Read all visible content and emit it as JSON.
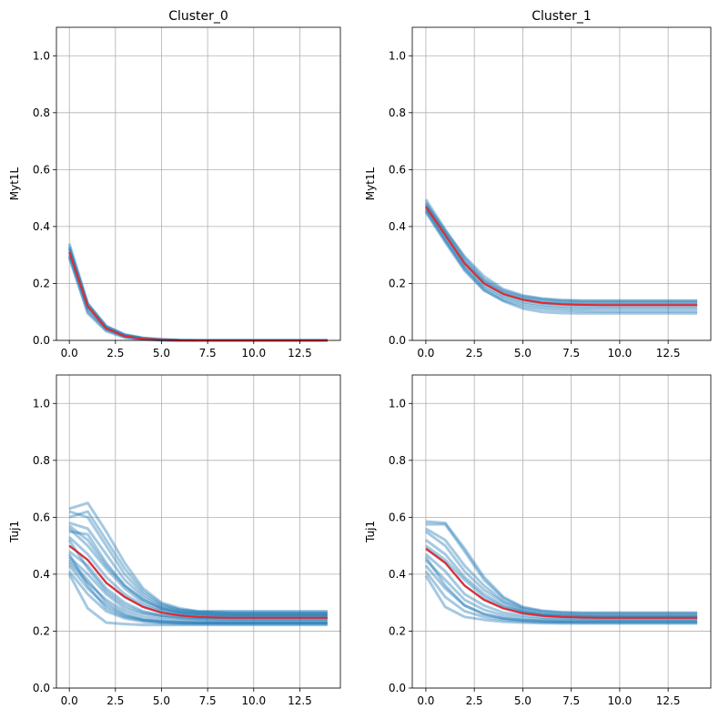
{
  "chart_data": [
    {
      "type": "line",
      "title": "Cluster_0",
      "xlabel": "",
      "ylabel": "Myt1L",
      "xlim": [
        -0.7,
        14.7
      ],
      "ylim": [
        0,
        1.1
      ],
      "xticks": [
        0,
        2.5,
        5,
        7.5,
        10,
        12.5
      ],
      "xtick_labels": [
        "0.0",
        "2.5",
        "5.0",
        "7.5",
        "10.0",
        "12.5"
      ],
      "yticks": [
        0,
        0.2,
        0.4,
        0.6,
        0.8,
        1.0
      ],
      "ytick_labels": [
        "0.0",
        "0.2",
        "0.4",
        "0.6",
        "0.8",
        "1.0"
      ],
      "grid": true,
      "x": [
        0,
        1,
        2,
        3,
        4,
        5,
        6,
        7,
        8,
        9,
        10,
        11,
        12,
        13,
        14
      ],
      "mean_series": [
        0.31,
        0.12,
        0.042,
        0.015,
        0.005,
        0.002,
        0.0,
        0.0,
        0.0,
        0.0,
        0.0,
        0.0,
        0.0,
        0.0,
        0.0
      ],
      "mean_color": "#e8262a",
      "trace_color": "#1f77b4",
      "traces": [
        [
          0.34,
          0.13,
          0.05,
          0.02,
          0.008,
          0.003,
          0.001,
          0,
          0,
          0,
          0,
          0,
          0,
          0,
          0
        ],
        [
          0.33,
          0.125,
          0.047,
          0.018,
          0.007,
          0.002,
          0,
          0,
          0,
          0,
          0,
          0,
          0,
          0,
          0
        ],
        [
          0.32,
          0.12,
          0.044,
          0.016,
          0.006,
          0.002,
          0,
          0,
          0,
          0,
          0,
          0,
          0,
          0,
          0
        ],
        [
          0.31,
          0.115,
          0.042,
          0.015,
          0.005,
          0.002,
          0,
          0,
          0,
          0,
          0,
          0,
          0,
          0,
          0
        ],
        [
          0.3,
          0.11,
          0.04,
          0.014,
          0.005,
          0.001,
          0,
          0,
          0,
          0,
          0,
          0,
          0,
          0,
          0
        ],
        [
          0.295,
          0.1,
          0.036,
          0.012,
          0.004,
          0.001,
          0,
          0,
          0,
          0,
          0,
          0,
          0,
          0,
          0
        ],
        [
          0.29,
          0.095,
          0.032,
          0.01,
          0.003,
          0.001,
          0,
          0,
          0,
          0,
          0,
          0,
          0,
          0,
          0
        ],
        [
          0.325,
          0.128,
          0.05,
          0.021,
          0.009,
          0.004,
          0.001,
          0,
          0,
          0,
          0,
          0,
          0,
          0,
          0
        ]
      ]
    },
    {
      "type": "line",
      "title": "Cluster_1",
      "xlabel": "",
      "ylabel": "Myt1L",
      "xlim": [
        -0.7,
        14.7
      ],
      "ylim": [
        0,
        1.1
      ],
      "xticks": [
        0,
        2.5,
        5,
        7.5,
        10,
        12.5
      ],
      "xtick_labels": [
        "0.0",
        "2.5",
        "5.0",
        "7.5",
        "10.0",
        "12.5"
      ],
      "yticks": [
        0,
        0.2,
        0.4,
        0.6,
        0.8,
        1.0
      ],
      "ytick_labels": [
        "0.0",
        "0.2",
        "0.4",
        "0.6",
        "0.8",
        "1.0"
      ],
      "grid": true,
      "x": [
        0,
        1,
        2,
        3,
        4,
        5,
        6,
        7,
        8,
        9,
        10,
        11,
        12,
        13,
        14
      ],
      "mean_series": [
        0.47,
        0.37,
        0.27,
        0.2,
        0.163,
        0.143,
        0.132,
        0.127,
        0.125,
        0.124,
        0.124,
        0.124,
        0.124,
        0.124,
        0.124
      ],
      "mean_color": "#e8262a",
      "trace_color": "#1f77b4",
      "traces": [
        [
          0.495,
          0.39,
          0.29,
          0.215,
          0.175,
          0.155,
          0.145,
          0.14,
          0.138,
          0.138,
          0.138,
          0.138,
          0.138,
          0.138,
          0.138
        ],
        [
          0.485,
          0.38,
          0.28,
          0.21,
          0.17,
          0.15,
          0.14,
          0.135,
          0.133,
          0.133,
          0.133,
          0.133,
          0.133,
          0.133,
          0.133
        ],
        [
          0.475,
          0.375,
          0.275,
          0.205,
          0.165,
          0.145,
          0.134,
          0.13,
          0.128,
          0.128,
          0.128,
          0.128,
          0.128,
          0.128,
          0.128
        ],
        [
          0.47,
          0.37,
          0.27,
          0.2,
          0.162,
          0.142,
          0.131,
          0.127,
          0.125,
          0.125,
          0.125,
          0.125,
          0.125,
          0.125,
          0.125
        ],
        [
          0.465,
          0.362,
          0.262,
          0.192,
          0.155,
          0.135,
          0.125,
          0.12,
          0.118,
          0.118,
          0.118,
          0.118,
          0.118,
          0.118,
          0.118
        ],
        [
          0.46,
          0.355,
          0.255,
          0.185,
          0.148,
          0.128,
          0.118,
          0.113,
          0.111,
          0.111,
          0.111,
          0.111,
          0.111,
          0.111,
          0.111
        ],
        [
          0.45,
          0.345,
          0.245,
          0.175,
          0.14,
          0.12,
          0.11,
          0.105,
          0.103,
          0.102,
          0.102,
          0.102,
          0.102,
          0.102,
          0.102
        ],
        [
          0.455,
          0.35,
          0.25,
          0.178,
          0.138,
          0.112,
          0.1,
          0.096,
          0.095,
          0.095,
          0.095,
          0.095,
          0.095,
          0.095,
          0.095
        ],
        [
          0.48,
          0.385,
          0.295,
          0.225,
          0.18,
          0.158,
          0.147,
          0.142,
          0.14,
          0.14,
          0.14,
          0.14,
          0.14,
          0.14,
          0.14
        ]
      ]
    },
    {
      "type": "line",
      "title": "",
      "xlabel": "",
      "ylabel": "Tuj1",
      "xlim": [
        -0.7,
        14.7
      ],
      "ylim": [
        0,
        1.1
      ],
      "xticks": [
        0,
        2.5,
        5,
        7.5,
        10,
        12.5
      ],
      "xtick_labels": [
        "0.0",
        "2.5",
        "5.0",
        "7.5",
        "10.0",
        "12.5"
      ],
      "yticks": [
        0,
        0.2,
        0.4,
        0.6,
        0.8,
        1.0
      ],
      "ytick_labels": [
        "0.0",
        "0.2",
        "0.4",
        "0.6",
        "0.8",
        "1.0"
      ],
      "grid": true,
      "x": [
        0,
        1,
        2,
        3,
        4,
        5,
        6,
        7,
        8,
        9,
        10,
        11,
        12,
        13,
        14
      ],
      "mean_series": [
        0.5,
        0.45,
        0.37,
        0.32,
        0.285,
        0.265,
        0.255,
        0.25,
        0.248,
        0.247,
        0.247,
        0.247,
        0.247,
        0.247,
        0.247
      ],
      "mean_color": "#e8262a",
      "trace_color": "#1f77b4",
      "traces": [
        [
          0.63,
          0.65,
          0.55,
          0.44,
          0.35,
          0.3,
          0.28,
          0.27,
          0.27,
          0.27,
          0.27,
          0.27,
          0.27,
          0.27,
          0.27
        ],
        [
          0.62,
          0.6,
          0.5,
          0.4,
          0.33,
          0.29,
          0.275,
          0.268,
          0.266,
          0.265,
          0.265,
          0.265,
          0.265,
          0.265,
          0.265
        ],
        [
          0.6,
          0.62,
          0.52,
          0.42,
          0.34,
          0.295,
          0.275,
          0.268,
          0.266,
          0.265,
          0.265,
          0.265,
          0.265,
          0.265,
          0.265
        ],
        [
          0.58,
          0.56,
          0.47,
          0.38,
          0.32,
          0.285,
          0.27,
          0.265,
          0.263,
          0.262,
          0.262,
          0.262,
          0.262,
          0.262,
          0.262
        ],
        [
          0.56,
          0.5,
          0.42,
          0.35,
          0.3,
          0.275,
          0.263,
          0.258,
          0.256,
          0.255,
          0.255,
          0.255,
          0.255,
          0.255,
          0.255
        ],
        [
          0.55,
          0.54,
          0.44,
          0.36,
          0.31,
          0.28,
          0.266,
          0.26,
          0.258,
          0.258,
          0.258,
          0.258,
          0.258,
          0.258,
          0.258
        ],
        [
          0.53,
          0.47,
          0.39,
          0.33,
          0.29,
          0.27,
          0.26,
          0.255,
          0.253,
          0.252,
          0.252,
          0.252,
          0.252,
          0.252,
          0.252
        ],
        [
          0.5,
          0.45,
          0.37,
          0.32,
          0.285,
          0.265,
          0.255,
          0.25,
          0.248,
          0.247,
          0.247,
          0.247,
          0.247,
          0.247,
          0.247
        ],
        [
          0.48,
          0.43,
          0.35,
          0.3,
          0.27,
          0.255,
          0.248,
          0.244,
          0.243,
          0.242,
          0.242,
          0.242,
          0.242,
          0.242,
          0.242
        ],
        [
          0.46,
          0.4,
          0.33,
          0.28,
          0.26,
          0.25,
          0.244,
          0.241,
          0.24,
          0.24,
          0.24,
          0.24,
          0.24,
          0.24,
          0.24
        ],
        [
          0.44,
          0.37,
          0.31,
          0.27,
          0.25,
          0.242,
          0.238,
          0.236,
          0.235,
          0.235,
          0.235,
          0.235,
          0.235,
          0.235,
          0.235
        ],
        [
          0.43,
          0.35,
          0.29,
          0.255,
          0.24,
          0.233,
          0.23,
          0.229,
          0.228,
          0.228,
          0.228,
          0.228,
          0.228,
          0.228,
          0.228
        ],
        [
          0.41,
          0.33,
          0.27,
          0.245,
          0.233,
          0.228,
          0.226,
          0.225,
          0.225,
          0.225,
          0.225,
          0.225,
          0.225,
          0.225,
          0.225
        ],
        [
          0.4,
          0.28,
          0.23,
          0.225,
          0.222,
          0.222,
          0.222,
          0.222,
          0.222,
          0.222,
          0.222,
          0.222,
          0.222,
          0.222,
          0.222
        ],
        [
          0.45,
          0.38,
          0.3,
          0.26,
          0.24,
          0.235,
          0.232,
          0.23,
          0.23,
          0.23,
          0.23,
          0.23,
          0.23,
          0.23,
          0.23
        ],
        [
          0.52,
          0.42,
          0.34,
          0.29,
          0.265,
          0.255,
          0.25,
          0.248,
          0.247,
          0.247,
          0.247,
          0.247,
          0.247,
          0.247,
          0.247
        ],
        [
          0.57,
          0.52,
          0.43,
          0.36,
          0.31,
          0.28,
          0.266,
          0.26,
          0.258,
          0.257,
          0.257,
          0.257,
          0.257,
          0.257,
          0.257
        ],
        [
          0.47,
          0.36,
          0.28,
          0.25,
          0.238,
          0.232,
          0.23,
          0.229,
          0.229,
          0.229,
          0.229,
          0.229,
          0.229,
          0.229,
          0.229
        ]
      ]
    },
    {
      "type": "line",
      "title": "",
      "xlabel": "",
      "ylabel": "Tuj1",
      "xlim": [
        -0.7,
        14.7
      ],
      "ylim": [
        0,
        1.1
      ],
      "xticks": [
        0,
        2.5,
        5,
        7.5,
        10,
        12.5
      ],
      "xtick_labels": [
        "0.0",
        "2.5",
        "5.0",
        "7.5",
        "10.0",
        "12.5"
      ],
      "yticks": [
        0,
        0.2,
        0.4,
        0.6,
        0.8,
        1.0
      ],
      "ytick_labels": [
        "0.0",
        "0.2",
        "0.4",
        "0.6",
        "0.8",
        "1.0"
      ],
      "grid": true,
      "x": [
        0,
        1,
        2,
        3,
        4,
        5,
        6,
        7,
        8,
        9,
        10,
        11,
        12,
        13,
        14
      ],
      "mean_series": [
        0.49,
        0.44,
        0.36,
        0.31,
        0.28,
        0.263,
        0.254,
        0.25,
        0.248,
        0.247,
        0.247,
        0.247,
        0.247,
        0.247,
        0.247
      ],
      "mean_color": "#e8262a",
      "trace_color": "#1f77b4",
      "traces": [
        [
          0.585,
          0.58,
          0.49,
          0.39,
          0.32,
          0.285,
          0.272,
          0.267,
          0.265,
          0.265,
          0.265,
          0.265,
          0.265,
          0.265,
          0.265
        ],
        [
          0.575,
          0.575,
          0.48,
          0.38,
          0.315,
          0.282,
          0.27,
          0.265,
          0.263,
          0.263,
          0.263,
          0.263,
          0.263,
          0.263,
          0.263
        ],
        [
          0.56,
          0.52,
          0.43,
          0.36,
          0.305,
          0.278,
          0.266,
          0.261,
          0.259,
          0.259,
          0.259,
          0.259,
          0.259,
          0.259,
          0.259
        ],
        [
          0.55,
          0.5,
          0.41,
          0.345,
          0.3,
          0.272,
          0.26,
          0.256,
          0.254,
          0.254,
          0.254,
          0.254,
          0.254,
          0.254,
          0.254
        ],
        [
          0.52,
          0.47,
          0.39,
          0.33,
          0.29,
          0.268,
          0.257,
          0.253,
          0.251,
          0.25,
          0.25,
          0.25,
          0.25,
          0.25,
          0.25
        ],
        [
          0.49,
          0.44,
          0.36,
          0.31,
          0.28,
          0.263,
          0.254,
          0.25,
          0.248,
          0.247,
          0.247,
          0.247,
          0.247,
          0.247,
          0.247
        ],
        [
          0.47,
          0.41,
          0.33,
          0.29,
          0.265,
          0.255,
          0.248,
          0.245,
          0.244,
          0.243,
          0.243,
          0.243,
          0.243,
          0.243,
          0.243
        ],
        [
          0.45,
          0.38,
          0.31,
          0.275,
          0.255,
          0.247,
          0.242,
          0.24,
          0.239,
          0.239,
          0.239,
          0.239,
          0.239,
          0.239,
          0.239
        ],
        [
          0.43,
          0.35,
          0.29,
          0.26,
          0.245,
          0.24,
          0.237,
          0.235,
          0.235,
          0.235,
          0.235,
          0.235,
          0.235,
          0.235,
          0.235
        ],
        [
          0.41,
          0.32,
          0.27,
          0.25,
          0.24,
          0.235,
          0.232,
          0.231,
          0.23,
          0.23,
          0.23,
          0.23,
          0.23,
          0.23,
          0.23
        ],
        [
          0.395,
          0.285,
          0.25,
          0.24,
          0.233,
          0.23,
          0.228,
          0.227,
          0.227,
          0.227,
          0.227,
          0.227,
          0.227,
          0.227,
          0.227
        ],
        [
          0.5,
          0.45,
          0.38,
          0.32,
          0.285,
          0.268,
          0.258,
          0.254,
          0.252,
          0.252,
          0.252,
          0.252,
          0.252,
          0.252,
          0.252
        ],
        [
          0.46,
          0.36,
          0.29,
          0.26,
          0.245,
          0.238,
          0.234,
          0.232,
          0.232,
          0.232,
          0.232,
          0.232,
          0.232,
          0.232,
          0.232
        ]
      ]
    }
  ]
}
